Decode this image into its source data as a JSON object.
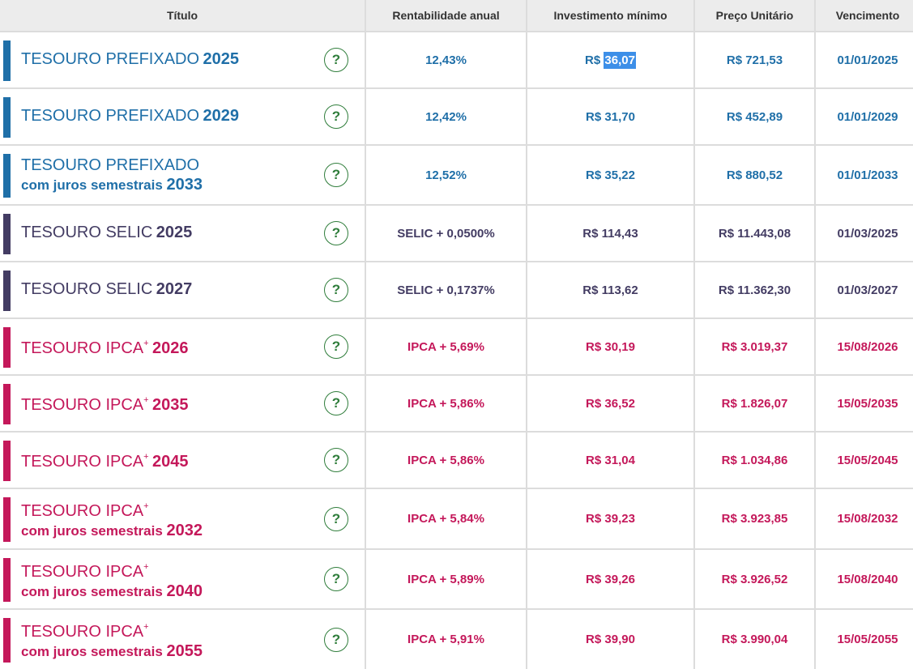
{
  "header": {
    "titulo": "Título",
    "rentabilidade": "Rentabilidade anual",
    "investimento": "Investimento mínimo",
    "preco": "Preço Unitário",
    "vencimento": "Vencimento"
  },
  "colors": {
    "prefixado": "#1f6fa8",
    "selic": "#433c63",
    "ipca": "#c4185a",
    "help": "#2f7d3b"
  },
  "help_glyph": "?",
  "rows": [
    {
      "name": "TESOURO PREFIXADO",
      "plus": "",
      "sub": "",
      "year": "2025",
      "rent": "12,43%",
      "inv_prefix": "R$ ",
      "inv_value": "36,07",
      "preco": "R$ 721,53",
      "venc": "01/01/2025",
      "color": "#1f6fa8"
    },
    {
      "name": "TESOURO PREFIXADO",
      "plus": "",
      "sub": "",
      "year": "2029",
      "rent": "12,42%",
      "inv_prefix": "R$ ",
      "inv_value": "31,70",
      "preco": "R$ 452,89",
      "venc": "01/01/2029",
      "color": "#1f6fa8"
    },
    {
      "name": "TESOURO PREFIXADO",
      "plus": "",
      "sub": "com juros semestrais",
      "year": "2033",
      "rent": "12,52%",
      "inv_prefix": "R$ ",
      "inv_value": "35,22",
      "preco": "R$ 880,52",
      "venc": "01/01/2033",
      "color": "#1f6fa8"
    },
    {
      "name": "TESOURO SELIC",
      "plus": "",
      "sub": "",
      "year": "2025",
      "rent": "SELIC + 0,0500%",
      "inv_prefix": "R$ ",
      "inv_value": "114,43",
      "preco": "R$ 11.443,08",
      "venc": "01/03/2025",
      "color": "#433c63"
    },
    {
      "name": "TESOURO SELIC",
      "plus": "",
      "sub": "",
      "year": "2027",
      "rent": "SELIC + 0,1737%",
      "inv_prefix": "R$ ",
      "inv_value": "113,62",
      "preco": "R$ 11.362,30",
      "venc": "01/03/2027",
      "color": "#433c63"
    },
    {
      "name": "TESOURO IPCA",
      "plus": "+",
      "sub": "",
      "year": "2026",
      "rent": "IPCA + 5,69%",
      "inv_prefix": "R$ ",
      "inv_value": "30,19",
      "preco": "R$ 3.019,37",
      "venc": "15/08/2026",
      "color": "#c4185a"
    },
    {
      "name": "TESOURO IPCA",
      "plus": "+",
      "sub": "",
      "year": "2035",
      "rent": "IPCA + 5,86%",
      "inv_prefix": "R$ ",
      "inv_value": "36,52",
      "preco": "R$ 1.826,07",
      "venc": "15/05/2035",
      "color": "#c4185a"
    },
    {
      "name": "TESOURO IPCA",
      "plus": "+",
      "sub": "",
      "year": "2045",
      "rent": "IPCA + 5,86%",
      "inv_prefix": "R$ ",
      "inv_value": "31,04",
      "preco": "R$ 1.034,86",
      "venc": "15/05/2045",
      "color": "#c4185a"
    },
    {
      "name": "TESOURO IPCA",
      "plus": "+",
      "sub": "com juros semestrais",
      "year": "2032",
      "rent": "IPCA + 5,84%",
      "inv_prefix": "R$ ",
      "inv_value": "39,23",
      "preco": "R$ 3.923,85",
      "venc": "15/08/2032",
      "color": "#c4185a"
    },
    {
      "name": "TESOURO IPCA",
      "plus": "+",
      "sub": "com juros semestrais",
      "year": "2040",
      "rent": "IPCA + 5,89%",
      "inv_prefix": "R$ ",
      "inv_value": "39,26",
      "preco": "R$ 3.926,52",
      "venc": "15/08/2040",
      "color": "#c4185a"
    },
    {
      "name": "TESOURO IPCA",
      "plus": "+",
      "sub": "com juros semestrais",
      "year": "2055",
      "rent": "IPCA + 5,91%",
      "inv_prefix": "R$ ",
      "inv_value": "39,90",
      "preco": "R$ 3.990,04",
      "venc": "15/05/2055",
      "color": "#c4185a"
    }
  ]
}
